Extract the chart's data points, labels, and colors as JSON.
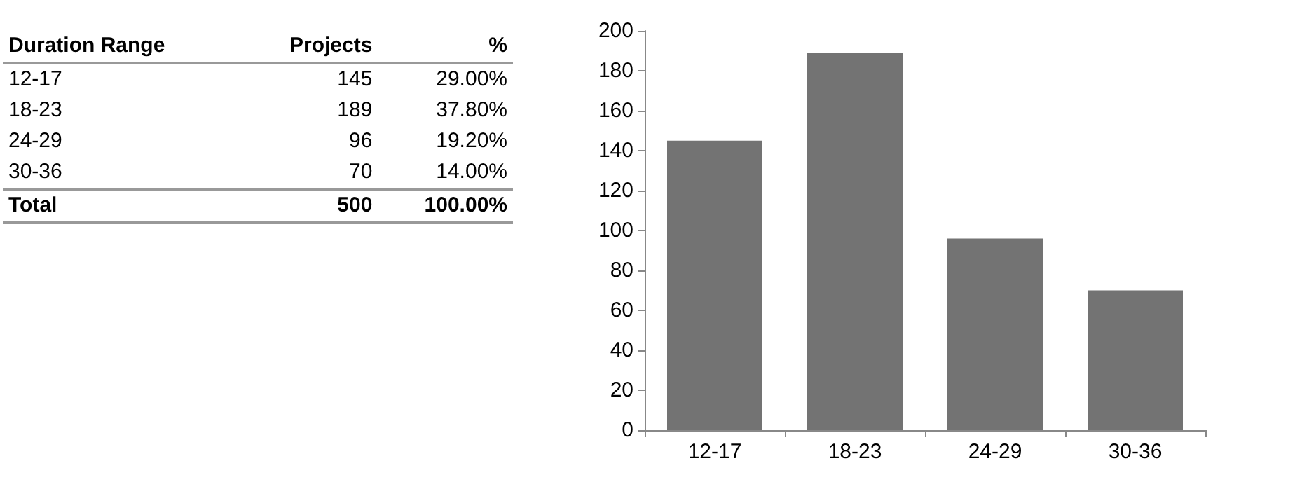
{
  "chart_data": [
    {
      "type": "other",
      "categories": [
        "Duration Range",
        "Projects",
        "%"
      ],
      "y_categories": [
        "12-17",
        "18-23",
        "24-29",
        "30-36",
        "Total"
      ],
      "cell_labels": [
        [
          "145",
          "29.00%"
        ],
        [
          "189",
          "37.80%"
        ],
        [
          "96",
          "19.20%"
        ],
        [
          "70",
          "14.00%"
        ],
        [
          "500",
          "100.00%"
        ]
      ]
    },
    {
      "type": "bar",
      "categories": [
        "12-17",
        "18-23",
        "24-29",
        "30-36"
      ],
      "values": [
        145,
        189,
        96,
        70
      ],
      "color": "#737373",
      "ylim": [
        0,
        200
      ],
      "yticks": [
        0,
        20,
        40,
        60,
        80,
        100,
        120,
        140,
        160,
        180,
        200
      ],
      "grid": false
    }
  ]
}
